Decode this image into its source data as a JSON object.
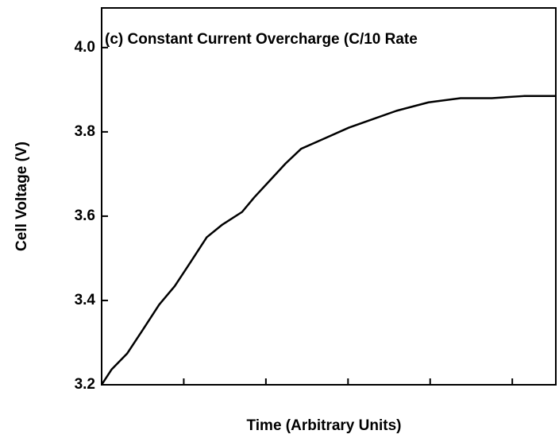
{
  "chart_data": {
    "type": "line",
    "title": "(c) Constant Current Overcharge (C/10 Rate",
    "xlabel": "Time (Arbitrary Units)",
    "ylabel": "Cell Voltage (V)",
    "x": [
      0,
      0.12,
      0.31,
      0.5,
      0.7,
      0.89,
      1.08,
      1.28,
      1.47,
      1.71,
      1.86,
      2.05,
      2.24,
      2.43,
      2.72,
      3.01,
      3.3,
      3.59,
      3.98,
      4.37,
      4.75,
      5.14,
      5.53
    ],
    "series": [
      {
        "name": "Cell Voltage",
        "color": "#000000",
        "values": [
          3.2,
          3.236,
          3.274,
          3.33,
          3.39,
          3.434,
          3.49,
          3.55,
          3.58,
          3.61,
          3.645,
          3.685,
          3.725,
          3.76,
          3.785,
          3.81,
          3.83,
          3.85,
          3.87,
          3.88,
          3.88,
          3.885,
          3.885
        ]
      }
    ],
    "xlim": [
      0,
      5.53
    ],
    "xticks": [
      0,
      1,
      2,
      3,
      4,
      5
    ],
    "ylim": [
      3.2,
      4.094
    ],
    "yticks": [
      {
        "value": 3.2,
        "label": "3.2"
      },
      {
        "value": 3.4,
        "label": "3.4"
      },
      {
        "value": 3.6,
        "label": "3.6"
      },
      {
        "value": 3.8,
        "label": "3.8"
      },
      {
        "value": 4.0,
        "label": "4.0"
      }
    ]
  }
}
